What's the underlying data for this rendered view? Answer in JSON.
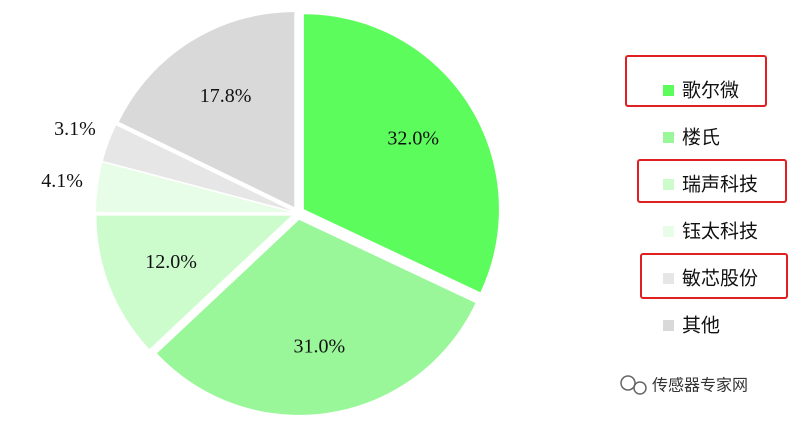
{
  "chart_data": {
    "type": "pie",
    "categories": [
      "歌尔微",
      "楼氏",
      "瑞声科技",
      "钰太科技",
      "敏芯股份",
      "其他"
    ],
    "values": [
      32.0,
      31.0,
      12.0,
      4.1,
      3.1,
      17.8
    ],
    "value_labels": [
      "32.0%",
      "31.0%",
      "12.0%",
      "4.1%",
      "3.1%",
      "17.8%"
    ],
    "colors": [
      "#5cfc5c",
      "#99f799",
      "#ccfccc",
      "#e8fde8",
      "#e6e6e6",
      "#d9d9d9"
    ],
    "legend": "right"
  },
  "watermark": "传感器专家网"
}
